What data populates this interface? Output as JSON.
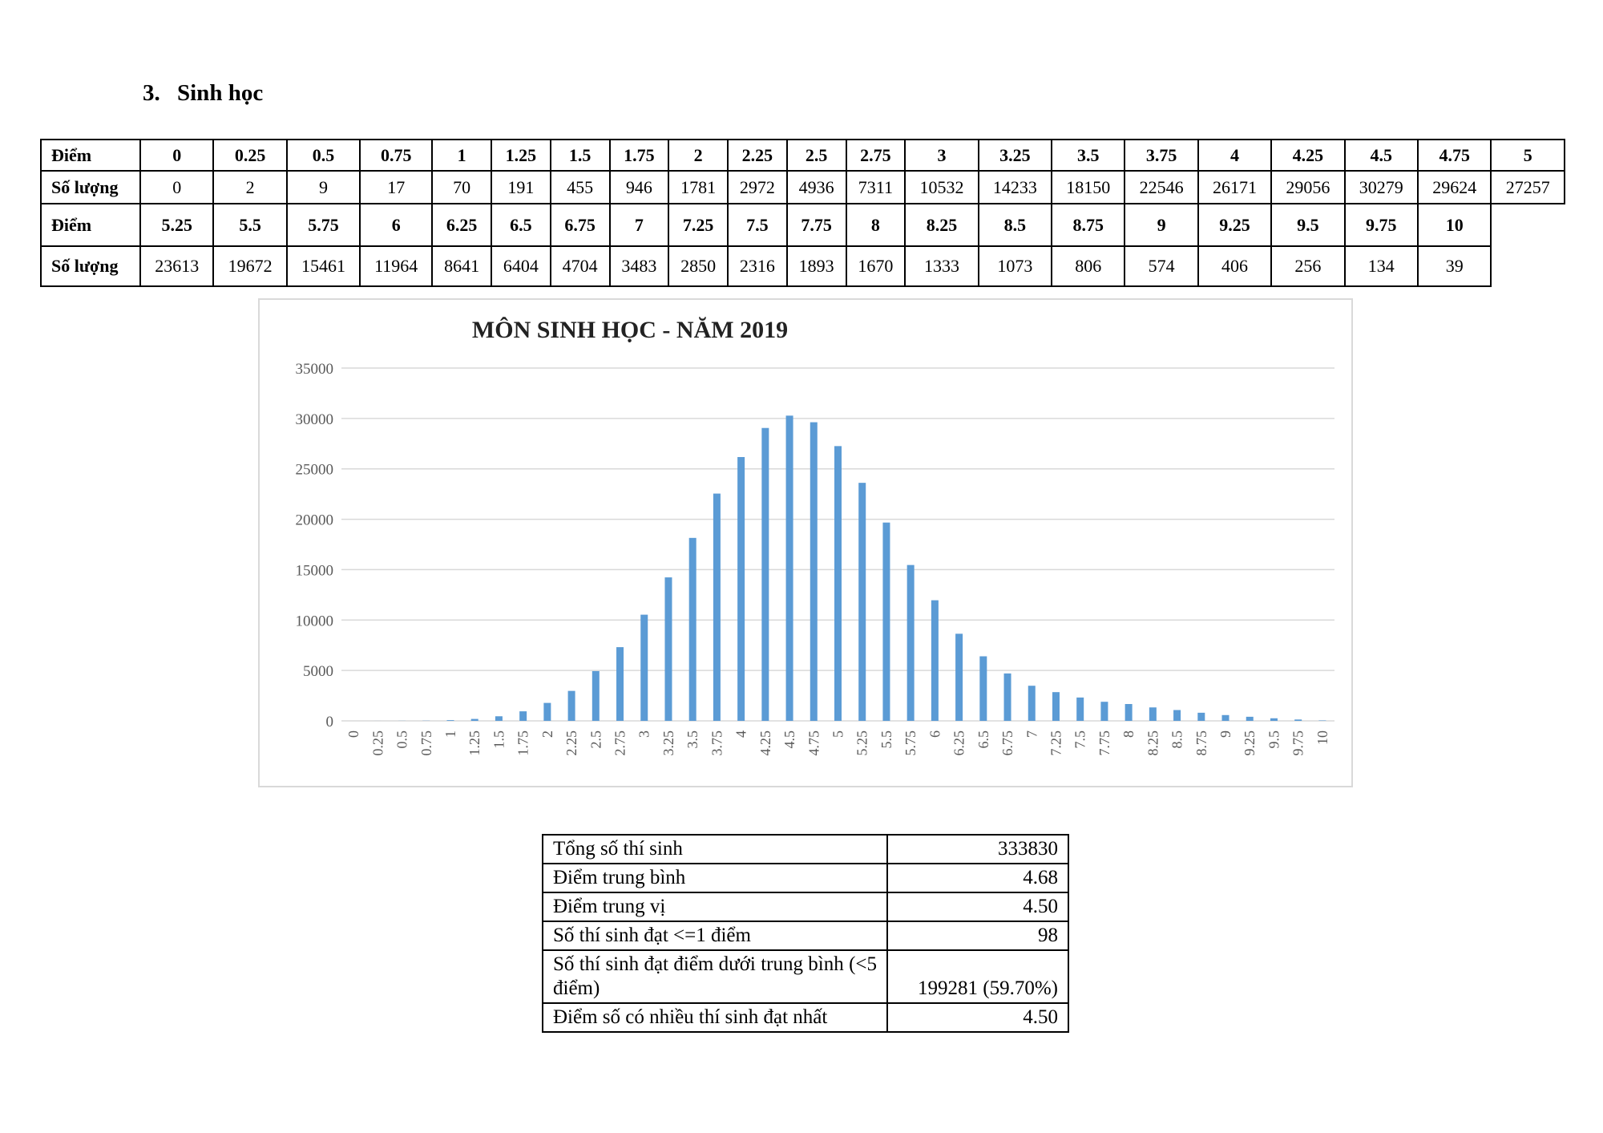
{
  "section": {
    "number": "3.",
    "title": "Sinh học"
  },
  "distribution_table": {
    "score_label": "Điểm",
    "count_label": "Số lượng",
    "part1": {
      "scores": [
        "0",
        "0.25",
        "0.5",
        "0.75",
        "1",
        "1.25",
        "1.5",
        "1.75",
        "2",
        "2.25",
        "2.5",
        "2.75",
        "3",
        "3.25",
        "3.5",
        "3.75",
        "4",
        "4.25",
        "4.5",
        "4.75",
        "5"
      ],
      "counts": [
        "0",
        "2",
        "9",
        "17",
        "70",
        "191",
        "455",
        "946",
        "1781",
        "2972",
        "4936",
        "7311",
        "10532",
        "14233",
        "18150",
        "22546",
        "26171",
        "29056",
        "30279",
        "29624",
        "27257"
      ]
    },
    "part2": {
      "scores": [
        "5.25",
        "5.5",
        "5.75",
        "6",
        "6.25",
        "6.5",
        "6.75",
        "7",
        "7.25",
        "7.5",
        "7.75",
        "8",
        "8.25",
        "8.5",
        "8.75",
        "9",
        "9.25",
        "9.5",
        "9.75",
        "10"
      ],
      "counts": [
        "23613",
        "19672",
        "15461",
        "11964",
        "8641",
        "6404",
        "4704",
        "3483",
        "2850",
        "2316",
        "1893",
        "1670",
        "1333",
        "1073",
        "806",
        "574",
        "406",
        "256",
        "134",
        "39"
      ]
    }
  },
  "chart_data": {
    "type": "bar",
    "title": "MÔN SINH HỌC - NĂM 2019",
    "xlabel": "",
    "ylabel": "",
    "categories": [
      "0",
      "0.25",
      "0.5",
      "0.75",
      "1",
      "1.25",
      "1.5",
      "1.75",
      "2",
      "2.25",
      "2.5",
      "2.75",
      "3",
      "3.25",
      "3.5",
      "3.75",
      "4",
      "4.25",
      "4.5",
      "4.75",
      "5",
      "5.25",
      "5.5",
      "5.75",
      "6",
      "6.25",
      "6.5",
      "6.75",
      "7",
      "7.25",
      "7.5",
      "7.75",
      "8",
      "8.25",
      "8.5",
      "8.75",
      "9",
      "9.25",
      "9.5",
      "9.75",
      "10"
    ],
    "values": [
      0,
      2,
      9,
      17,
      70,
      191,
      455,
      946,
      1781,
      2972,
      4936,
      7311,
      10532,
      14233,
      18150,
      22546,
      26171,
      29056,
      30279,
      29624,
      27257,
      23613,
      19672,
      15461,
      11964,
      8641,
      6404,
      4704,
      3483,
      2850,
      2316,
      1893,
      1670,
      1333,
      1073,
      806,
      574,
      406,
      256,
      134,
      39
    ],
    "ylim": [
      0,
      35000
    ],
    "yticks": [
      "0",
      "5000",
      "10000",
      "15000",
      "20000",
      "25000",
      "30000",
      "35000"
    ],
    "grid": true,
    "legend": "none",
    "bar_color": "#5b9bd5",
    "grid_color": "#d9d9d9"
  },
  "summary": [
    {
      "label": "Tổng số thí sinh",
      "value": "333830"
    },
    {
      "label": "Điểm trung bình",
      "value": "4.68"
    },
    {
      "label": "Điểm trung vị",
      "value": "4.50"
    },
    {
      "label": "Số thí sinh đạt <=1 điểm",
      "value": "98"
    },
    {
      "label": "Số thí sinh đạt điểm dưới trung bình (<5 điểm)",
      "value": "199281 (59.70%)"
    },
    {
      "label": "Điểm số có nhiều thí sinh đạt nhất",
      "value": "4.50"
    }
  ]
}
